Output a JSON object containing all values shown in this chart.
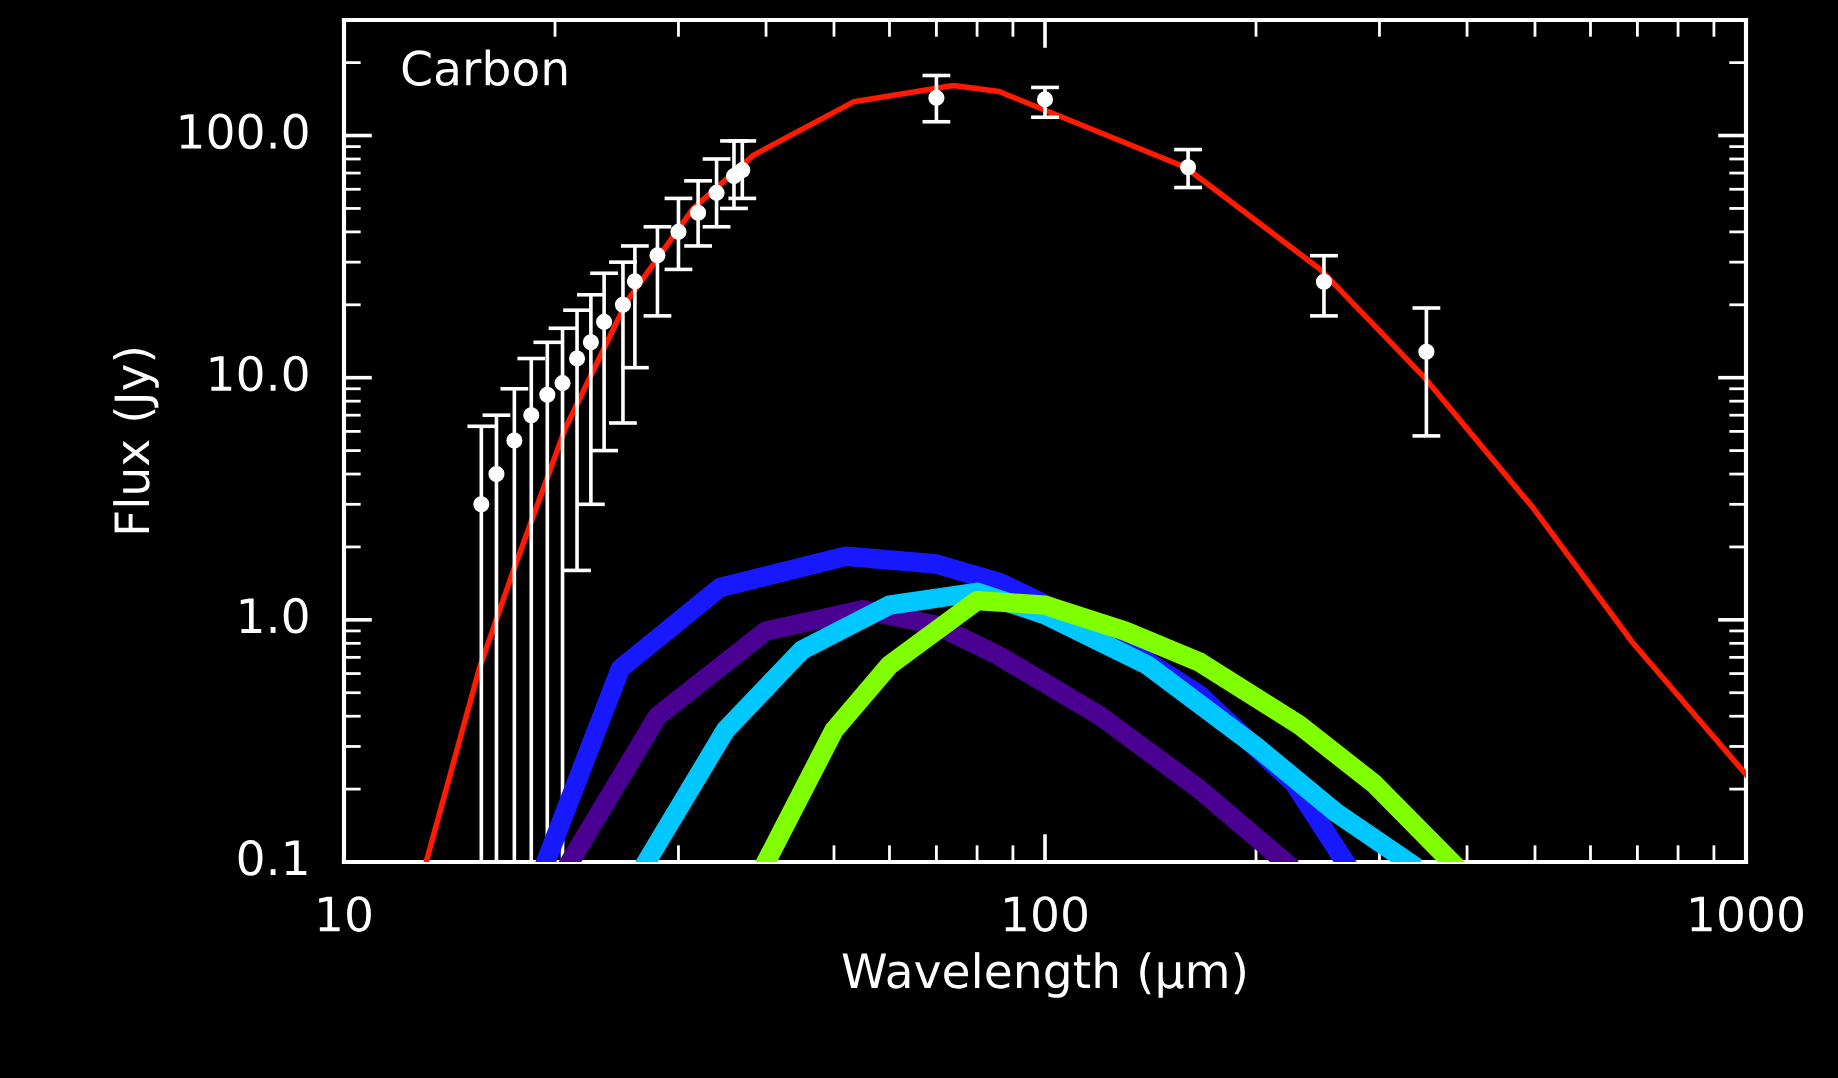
{
  "chart_data": {
    "type": "line",
    "title": "Carbon",
    "xlabel": "Wavelength (μm)",
    "ylabel": "Flux (Jy)",
    "log": "xy",
    "xlim": [
      10,
      1000
    ],
    "ylim": [
      0.1,
      300
    ],
    "xticks": [
      10,
      100,
      1000
    ],
    "yticks": [
      0.1,
      {
        "value": 1,
        "label": "1.0"
      },
      {
        "value": 10,
        "label": "10.0"
      },
      {
        "value": 100,
        "label": "100.0"
      }
    ],
    "grid": false,
    "legend": false,
    "marker": "none",
    "line_style": "solid",
    "series": [
      {
        "color": "#4a0090",
        "x": [
          21,
          28,
          40,
          55,
          70,
          86,
          120,
          166,
          220
        ],
        "values": [
          0.1,
          0.4,
          0.9,
          1.1,
          0.95,
          0.71,
          0.4,
          0.2,
          0.1
        ]
      },
      {
        "color": "#1818ff",
        "x": [
          19.4,
          24.8,
          34.4,
          52,
          70,
          86,
          120,
          166,
          227,
          268
        ],
        "values": [
          0.1,
          0.63,
          1.36,
          1.83,
          1.7,
          1.43,
          0.9,
          0.49,
          0.21,
          0.1
        ]
      },
      {
        "color": "#00c8ff",
        "x": [
          27,
          35,
          45,
          60,
          80,
          100,
          140,
          200,
          260,
          330
        ],
        "values": [
          0.1,
          0.35,
          0.75,
          1.15,
          1.3,
          1.05,
          0.65,
          0.3,
          0.16,
          0.1
        ]
      },
      {
        "color": "#80ff00",
        "x": [
          40,
          50,
          60,
          80,
          100,
          130,
          166,
          230,
          295,
          380
        ],
        "values": [
          0.1,
          0.35,
          0.65,
          1.2,
          1.15,
          0.9,
          0.67,
          0.37,
          0.21,
          0.1
        ]
      },
      {
        "type": "scatter",
        "marker": "circle",
        "color": "#ffffff",
        "x": [
          15.7,
          16.5,
          17.5,
          18.5,
          19.5,
          20.5,
          21.5,
          22.5,
          23.5,
          25,
          26,
          28,
          30,
          32,
          34,
          36,
          37
        ],
        "values": [
          3.0,
          4.0,
          5.5,
          7.0,
          8.5,
          9.5,
          12,
          14,
          17,
          20,
          25,
          32,
          40,
          48,
          58,
          68,
          72
        ],
        "errors": [
          [
            0.1,
            6.3
          ],
          [
            0.1,
            7.0
          ],
          [
            0.1,
            9.0
          ],
          [
            0.1,
            12
          ],
          [
            0.1,
            14
          ],
          [
            0.1,
            16
          ],
          [
            1.6,
            19
          ],
          [
            3.0,
            22
          ],
          [
            5,
            27
          ],
          [
            6.5,
            30
          ],
          [
            11,
            35
          ],
          [
            18,
            42
          ],
          [
            28,
            55
          ],
          [
            35,
            65
          ],
          [
            42,
            80
          ],
          [
            50,
            95
          ],
          [
            55,
            95
          ]
        ]
      },
      {
        "type": "scatter",
        "marker": "circle",
        "color": "#ffffff",
        "x": [
          70,
          100,
          160,
          250,
          350
        ],
        "values": [
          143,
          141,
          74,
          24.9,
          12.8
        ],
        "errors": [
          [
            114,
            177
          ],
          [
            119,
            158
          ],
          [
            61,
            87.5
          ],
          [
            18.0,
            31.9
          ],
          [
            5.75,
            19.4
          ]
        ]
      },
      {
        "color": "#ff1a00",
        "x": [
          13.1,
          15.6,
          17.5,
          20.7,
          25.3,
          31.5,
          38.4,
          53.4,
          74,
          86,
          158.6,
          247,
          348,
          497,
          688,
          1000
        ],
        "values": [
          0.1,
          0.63,
          1.64,
          6.2,
          20.6,
          50,
          83,
          138,
          161,
          152,
          74,
          28,
          10,
          2.9,
          0.81,
          0.23
        ]
      }
    ]
  }
}
